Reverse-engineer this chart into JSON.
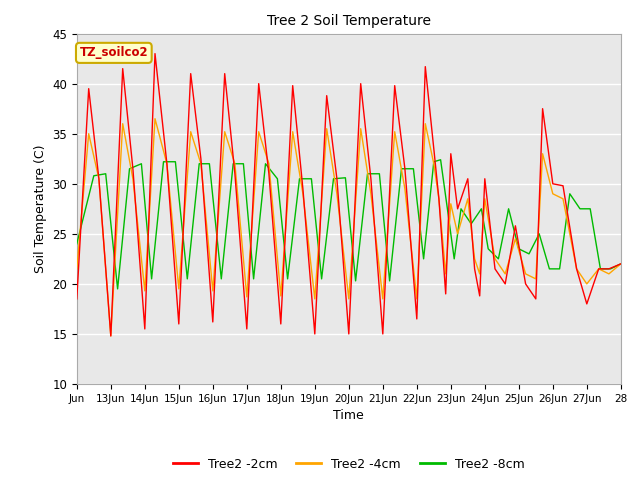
{
  "title": "Tree 2 Soil Temperature",
  "xlabel": "Time",
  "ylabel": "Soil Temperature (C)",
  "ylim": [
    10,
    45
  ],
  "xlim": [
    0,
    16
  ],
  "plot_bg_color": "#e8e8e8",
  "annotation_text": "TZ_soilco2",
  "annotation_bg": "#ffffcc",
  "annotation_border": "#ccaa00",
  "line_colors": {
    "2cm": "#ff0000",
    "4cm": "#ffa500",
    "8cm": "#00bb00"
  },
  "legend_labels": [
    "Tree2 -2cm",
    "Tree2 -4cm",
    "Tree2 -8cm"
  ],
  "xtick_labels": [
    "Jun",
    "13Jun",
    "14Jun",
    "15Jun",
    "16Jun",
    "17Jun",
    "18Jun",
    "19Jun",
    "20Jun",
    "21Jun",
    "22Jun",
    "23Jun",
    "24Jun",
    "25Jun",
    "26Jun",
    "27Jun",
    "28"
  ],
  "xtick_positions": [
    0,
    1,
    2,
    3,
    4,
    5,
    6,
    7,
    8,
    9,
    10,
    11,
    12,
    13,
    14,
    15,
    16
  ],
  "ytick_positions": [
    10,
    15,
    20,
    25,
    30,
    35,
    40,
    45
  ],
  "x_2cm": [
    0.0,
    0.35,
    0.65,
    1.0,
    1.35,
    1.65,
    2.0,
    2.3,
    2.65,
    3.0,
    3.35,
    3.65,
    4.0,
    4.35,
    4.65,
    5.0,
    5.35,
    5.65,
    6.0,
    6.35,
    6.65,
    7.0,
    7.35,
    7.65,
    8.0,
    8.35,
    8.65,
    9.0,
    9.35,
    9.65,
    10.0,
    10.25,
    10.5,
    10.65,
    10.85,
    11.0,
    11.2,
    11.5,
    11.7,
    11.85,
    12.0,
    12.3,
    12.6,
    12.9,
    13.2,
    13.5,
    13.7,
    14.0,
    14.3,
    14.7,
    15.0,
    15.35,
    15.65,
    16.0,
    16.3
  ],
  "t_2cm": [
    18.5,
    39.5,
    30.5,
    14.8,
    41.5,
    31.5,
    15.5,
    43.0,
    32.0,
    16.0,
    41.0,
    32.5,
    16.2,
    41.0,
    31.0,
    15.5,
    40.0,
    31.0,
    16.0,
    39.8,
    29.5,
    15.0,
    38.8,
    30.5,
    15.0,
    40.0,
    30.5,
    15.0,
    39.8,
    31.5,
    16.5,
    41.7,
    33.5,
    28.5,
    19.0,
    33.0,
    27.5,
    30.5,
    21.5,
    18.8,
    30.5,
    21.5,
    20.0,
    25.8,
    20.0,
    18.5,
    37.5,
    30.0,
    29.8,
    21.5,
    18.0,
    21.5,
    21.5,
    22.0,
    21.5
  ],
  "x_4cm": [
    0.0,
    0.35,
    0.65,
    1.0,
    1.35,
    1.65,
    2.0,
    2.3,
    2.65,
    3.0,
    3.35,
    3.65,
    4.0,
    4.35,
    4.65,
    5.0,
    5.35,
    5.65,
    6.0,
    6.35,
    6.65,
    7.0,
    7.35,
    7.65,
    8.0,
    8.35,
    8.65,
    9.0,
    9.35,
    9.65,
    10.0,
    10.25,
    10.5,
    10.65,
    10.85,
    11.0,
    11.2,
    11.5,
    11.7,
    11.85,
    12.0,
    12.3,
    12.6,
    12.9,
    13.2,
    13.5,
    13.7,
    14.0,
    14.3,
    14.7,
    15.0,
    15.35,
    15.65,
    16.0,
    16.3
  ],
  "t_4cm": [
    21.5,
    35.0,
    30.5,
    14.8,
    36.0,
    30.5,
    19.3,
    36.5,
    32.0,
    19.5,
    35.2,
    32.0,
    19.3,
    35.2,
    32.0,
    18.7,
    35.2,
    32.0,
    18.8,
    35.2,
    29.0,
    18.5,
    35.5,
    29.0,
    18.5,
    35.5,
    29.0,
    18.5,
    35.2,
    29.5,
    18.5,
    36.0,
    32.0,
    28.5,
    21.0,
    28.0,
    25.0,
    28.5,
    22.5,
    21.0,
    28.5,
    22.5,
    21.0,
    24.5,
    21.0,
    20.5,
    33.0,
    29.0,
    28.5,
    21.5,
    20.0,
    21.5,
    21.0,
    22.0,
    21.5
  ],
  "x_8cm": [
    0.0,
    0.5,
    0.85,
    1.2,
    1.55,
    1.9,
    2.2,
    2.55,
    2.9,
    3.25,
    3.6,
    3.9,
    4.25,
    4.6,
    4.9,
    5.2,
    5.55,
    5.9,
    6.2,
    6.55,
    6.9,
    7.2,
    7.55,
    7.9,
    8.2,
    8.55,
    8.9,
    9.2,
    9.55,
    9.9,
    10.2,
    10.5,
    10.7,
    10.9,
    11.1,
    11.3,
    11.6,
    11.9,
    12.1,
    12.4,
    12.7,
    13.0,
    13.3,
    13.6,
    13.9,
    14.2,
    14.5,
    14.8,
    15.1,
    15.4,
    15.7,
    16.0,
    16.3
  ],
  "t_8cm": [
    24.0,
    30.8,
    31.0,
    19.5,
    31.5,
    32.0,
    20.5,
    32.2,
    32.2,
    20.5,
    32.0,
    32.0,
    20.5,
    32.0,
    32.0,
    20.5,
    32.0,
    30.5,
    20.5,
    30.5,
    30.5,
    20.5,
    30.5,
    30.6,
    20.3,
    31.0,
    31.0,
    20.3,
    31.5,
    31.5,
    22.5,
    32.2,
    32.4,
    27.5,
    22.5,
    27.5,
    26.0,
    27.5,
    23.5,
    22.5,
    27.5,
    23.5,
    23.0,
    25.0,
    21.5,
    21.5,
    29.0,
    27.5,
    27.5,
    21.5,
    21.5,
    22.0,
    21.5
  ]
}
